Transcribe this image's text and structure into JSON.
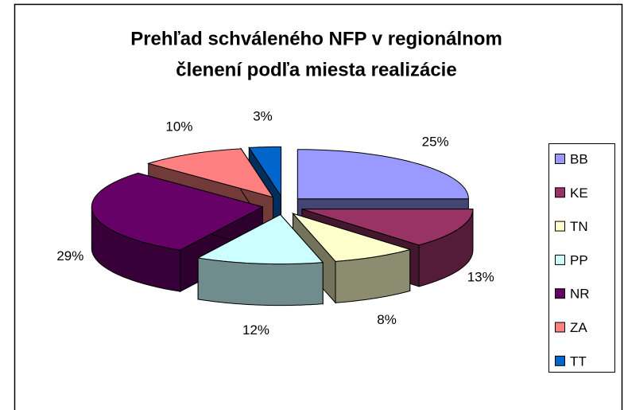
{
  "chart_data": {
    "type": "pie",
    "title": [
      "Prehľad schváleného NFP v regionálnom",
      "členení podľa miesta realizácie"
    ],
    "categories": [
      "BB",
      "KE",
      "TN",
      "PP",
      "NR",
      "ZA",
      "TT"
    ],
    "values": [
      25,
      13,
      8,
      12,
      29,
      10,
      3
    ],
    "value_labels": [
      "25%",
      "13%",
      "8%",
      "12%",
      "29%",
      "10%",
      "3%"
    ],
    "colors": [
      "#9999ff",
      "#993366",
      "#ffffcc",
      "#ccffff",
      "#660066",
      "#ff8080",
      "#0066cc"
    ],
    "legend": "right"
  }
}
